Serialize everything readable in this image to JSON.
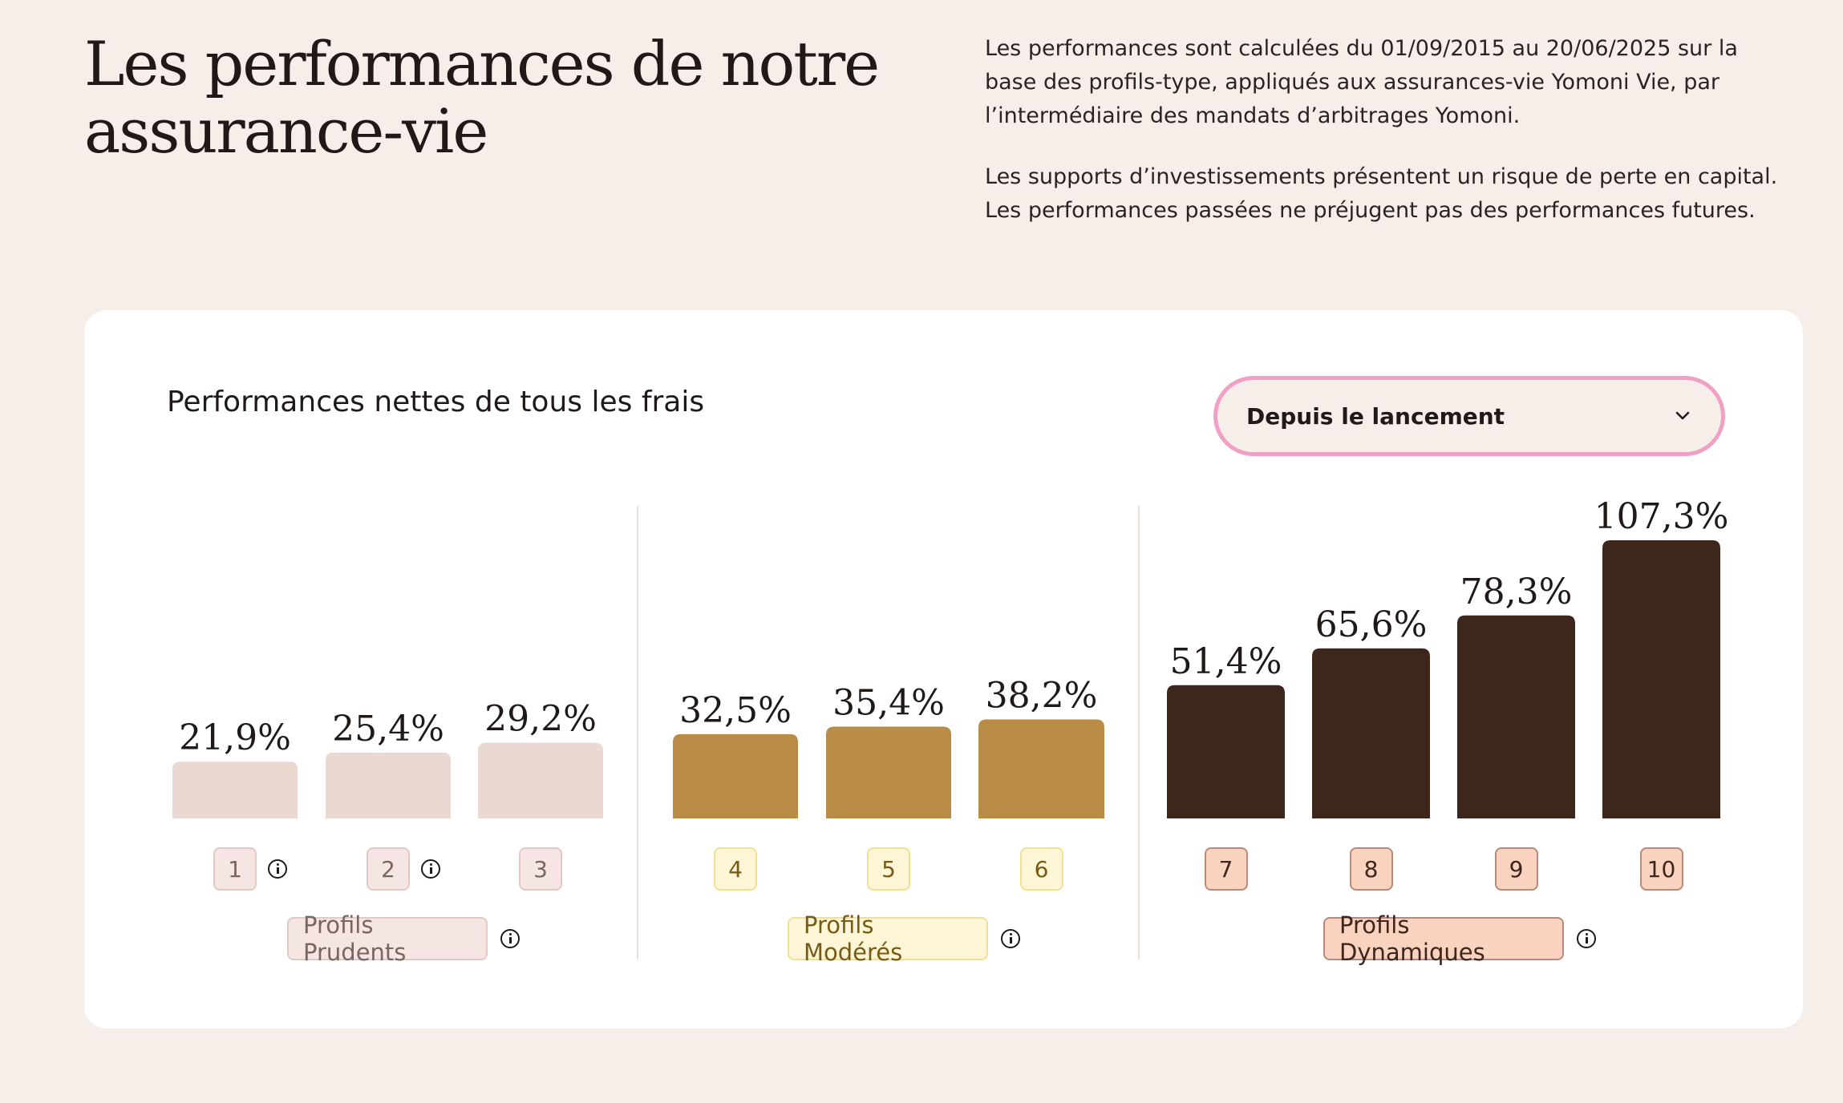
{
  "header": {
    "title": "Les performances de notre assurance-vie",
    "paragraph_1": "Les performances sont calculées du 01/09/2015 au 20/06/2025 sur la base des profils-type, appliqués aux assurances-vie Yomoni Vie, par l’intermédiaire des mandats d’arbitrages Yomoni.",
    "paragraph_2": "Les supports d’investissements présentent un risque de perte en capital. Les performances passées ne préjugent pas des performances futures."
  },
  "card": {
    "title": "Performances nettes de tous les frais",
    "period_select": {
      "value": "Depuis le lancement",
      "icon": "chevron-down-icon"
    }
  },
  "chart_data": {
    "type": "bar",
    "categories": [
      "1",
      "2",
      "3",
      "4",
      "5",
      "6",
      "7",
      "8",
      "9",
      "10"
    ],
    "values": [
      21.9,
      25.4,
      29.2,
      32.5,
      35.4,
      38.2,
      51.4,
      65.6,
      78.3,
      107.3
    ],
    "value_labels": [
      "21,9%",
      "25,4%",
      "29,2%",
      "32,5%",
      "35,4%",
      "38,2%",
      "51,4%",
      "65,6%",
      "78,3%",
      "107,3%"
    ],
    "unit": "%",
    "ylim": [
      0,
      107.3
    ],
    "grid": false,
    "groups": [
      {
        "name": "Profils Prudents",
        "categories": [
          "1",
          "2",
          "3"
        ],
        "bar_color": "#ead9d2",
        "badge_bg": "#f5e6e3",
        "badge_border": "#e3c9c4",
        "badge_text": "#7a6660",
        "info_on_categories": [
          "1",
          "2"
        ]
      },
      {
        "name": "Profils Modérés",
        "categories": [
          "4",
          "5",
          "6"
        ],
        "bar_color": "#b88c46",
        "badge_bg": "#fff6d8",
        "badge_border": "#f2df94",
        "badge_text": "#7a5a12",
        "info_on_categories": []
      },
      {
        "name": "Profils Dynamiques",
        "categories": [
          "7",
          "8",
          "9",
          "10"
        ],
        "bar_color": "#3d261c",
        "badge_bg": "#f9d3c0",
        "badge_border": "#b98a7c",
        "badge_text": "#3d261c",
        "info_on_categories": []
      }
    ]
  }
}
